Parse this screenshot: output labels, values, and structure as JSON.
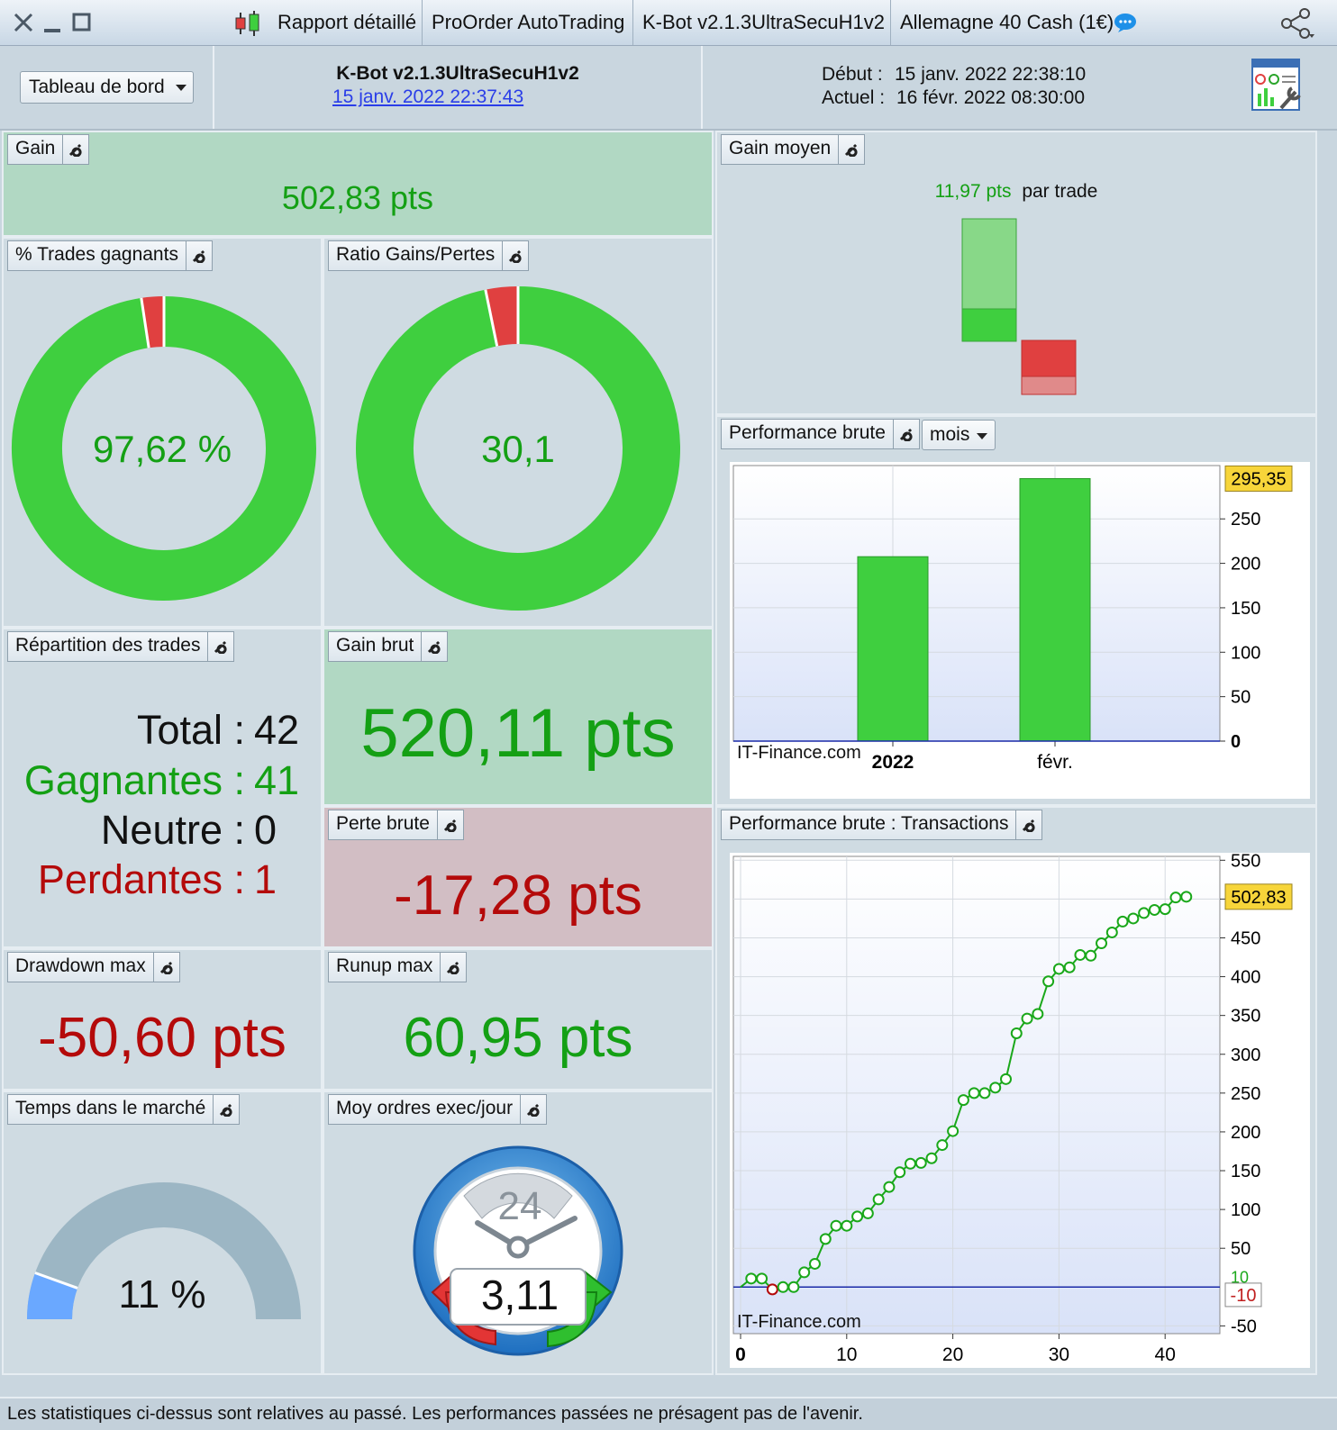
{
  "titlebar": {
    "tabs": [
      "Rapport détaillé",
      "ProOrder AutoTrading",
      "K-Bot v2.1.3UltraSecuH1v2",
      "Allemagne 40 Cash (1€)"
    ]
  },
  "header": {
    "dashboard_select": "Tableau de bord",
    "strategy_name": "K-Bot v2.1.3UltraSecuH1v2",
    "strategy_date": "15 janv. 2022 22:37:43",
    "debut_label": "Début :",
    "debut_value": "15 janv. 2022 22:38:10",
    "actuel_label": "Actuel :",
    "actuel_value": "16 févr. 2022 08:30:00"
  },
  "panels": {
    "gain": {
      "title": "Gain",
      "value": "502,83 pts"
    },
    "gain_moyen": {
      "title": "Gain moyen",
      "value": "11,97 pts",
      "suffix": "par trade"
    },
    "trades_gagnants": {
      "title": "% Trades gagnants",
      "value": "97,62 %",
      "fraction": 0.9762
    },
    "ratio": {
      "title": "Ratio Gains/Pertes",
      "value": "30,1",
      "fraction": 0.9678
    },
    "repartition": {
      "title": "Répartition des trades",
      "total_label": "Total :",
      "total_value": "42",
      "gagnantes_label": "Gagnantes :",
      "gagnantes_value": "41",
      "neutre_label": "Neutre :",
      "neutre_value": "0",
      "perdantes_label": "Perdantes :",
      "perdantes_value": "1"
    },
    "gain_brut": {
      "title": "Gain brut",
      "value": "520,11 pts"
    },
    "perte_brute": {
      "title": "Perte brute",
      "value": "-17,28 pts"
    },
    "drawdown": {
      "title": "Drawdown max",
      "value": "-50,60 pts"
    },
    "runup": {
      "title": "Runup max",
      "value": "60,95 pts"
    },
    "temps": {
      "title": "Temps dans le marché",
      "value": "11 %",
      "fraction": 0.11
    },
    "ordres": {
      "title": "Moy ordres exec/jour",
      "value": "3,11",
      "clock_label": "24"
    },
    "perf_mois": {
      "title": "Performance brute",
      "period_select": "mois",
      "watermark": "IT-Finance.com"
    },
    "perf_trans": {
      "title": "Performance brute : Transactions",
      "watermark": "IT-Finance.com"
    }
  },
  "colors": {
    "green": "#3fcf3f",
    "red": "#e04040",
    "darkgreen": "#14a014",
    "darkred": "#b40a0a",
    "badge": "#f7d53a"
  },
  "chart_data": [
    {
      "type": "bar",
      "categories": [
        "2022",
        "févr."
      ],
      "values": [
        207.48,
        295.35
      ],
      "ylim": [
        0,
        310
      ],
      "yticks": [
        0,
        50,
        100,
        150,
        200,
        250
      ],
      "last_value_label": "295,35",
      "grid": true
    },
    {
      "type": "line",
      "x": [
        0,
        1,
        2,
        3,
        4,
        5,
        6,
        7,
        8,
        9,
        10,
        11,
        12,
        13,
        14,
        15,
        16,
        17,
        18,
        19,
        20,
        21,
        22,
        23,
        24,
        25,
        26,
        27,
        28,
        29,
        30,
        31,
        32,
        33,
        34,
        35,
        36,
        37,
        38,
        39,
        40,
        41,
        42
      ],
      "y": [
        0,
        11,
        11,
        -3,
        0,
        0,
        19,
        30,
        62,
        79,
        79,
        91,
        95,
        113,
        129,
        148,
        159,
        160,
        166,
        183,
        201,
        241,
        250,
        250,
        257,
        268,
        327,
        346,
        352,
        394,
        410,
        412,
        428,
        427,
        443,
        457,
        471,
        475,
        482,
        486,
        487,
        502,
        503
      ],
      "ylim": [
        -60,
        555
      ],
      "yticks": [
        -50,
        50,
        100,
        150,
        200,
        250,
        300,
        350,
        400,
        450,
        500,
        550
      ],
      "xticks": [
        0,
        10,
        20,
        30,
        40
      ],
      "last_value_label": "502,83",
      "low_label": "-10",
      "mid_label": "10",
      "grid": true
    }
  ],
  "footer": {
    "text": "Les statistiques ci-dessus sont relatives au passé. Les performances passées ne présagent pas de l'avenir."
  }
}
